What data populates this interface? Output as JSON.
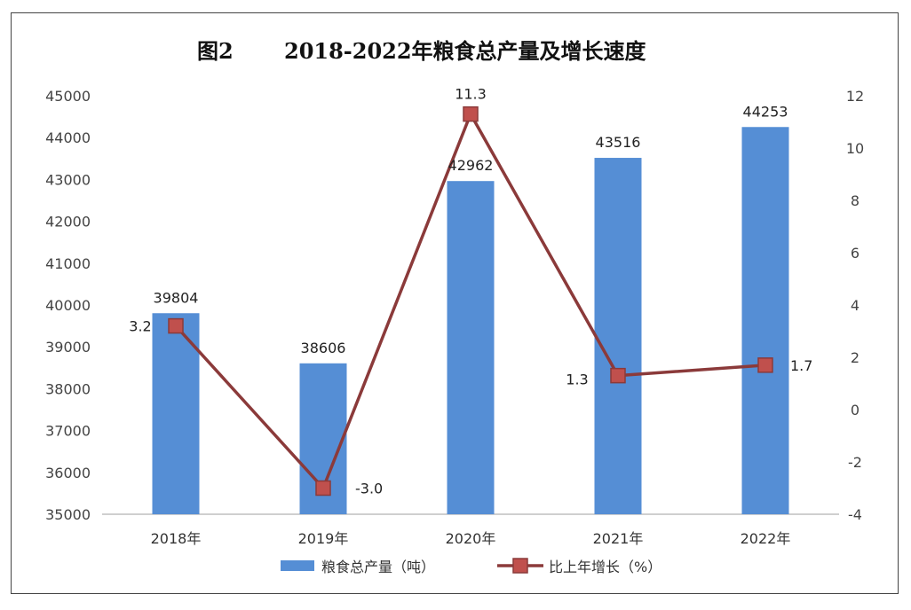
{
  "chart_data": {
    "type": "bar+line",
    "title": "图2　　2018-2022年粮食总产量及增长速度",
    "title_left": "图2",
    "title_right": "2018-2022年粮食总产量及增长速度",
    "categories": [
      "2018年",
      "2019年",
      "2020年",
      "2021年",
      "2022年"
    ],
    "series": [
      {
        "name": "粮食总产量（吨）",
        "type": "bar",
        "axis": "left",
        "color": "#558ED5",
        "values": [
          39804,
          38606,
          42962,
          43516,
          44253
        ],
        "labels": [
          "39804",
          "38606",
          "42962",
          "43516",
          "44253"
        ]
      },
      {
        "name": "比上年增长（%）",
        "type": "line",
        "axis": "right",
        "color": "#8B3A3A",
        "marker_color": "#C0504D",
        "values": [
          3.2,
          -3.0,
          11.3,
          1.3,
          1.7
        ],
        "labels": [
          "3.2",
          "-3.0",
          "11.3",
          "1.3",
          "1.7"
        ]
      }
    ],
    "y_left": {
      "ylim": [
        35000,
        45000
      ],
      "ticks": [
        "35000",
        "36000",
        "37000",
        "38000",
        "39000",
        "40000",
        "41000",
        "42000",
        "43000",
        "44000",
        "45000"
      ]
    },
    "y_right": {
      "ylim": [
        -4,
        12
      ],
      "ticks": [
        "-4",
        "-2",
        "0",
        "2",
        "4",
        "6",
        "8",
        "10",
        "12"
      ]
    },
    "legend_position": "bottom-center",
    "grid": false
  }
}
